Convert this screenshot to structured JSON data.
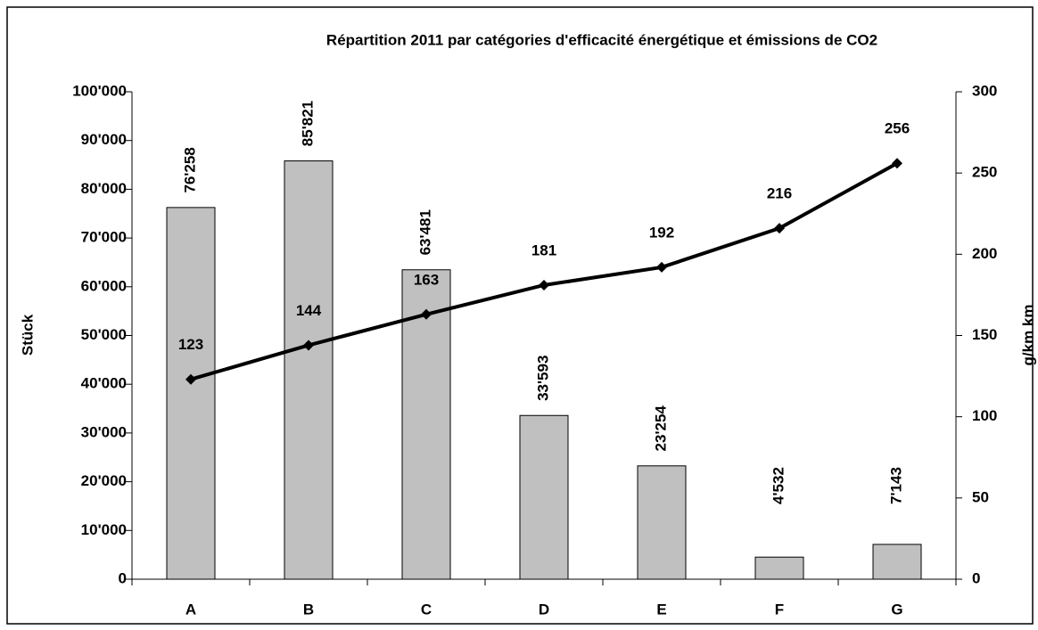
{
  "chart_data": {
    "type": "bar_line",
    "title": "Répartition 2011 par catégories d'efficacité énergétique et émissions de CO2",
    "ylabel": "Stück",
    "y2label": "g/km km",
    "categories": [
      "A",
      "B",
      "C",
      "D",
      "E",
      "F",
      "G"
    ],
    "series": [
      {
        "type": "bar",
        "color": "#c0c0c0",
        "values": [
          76258,
          85821,
          63481,
          33593,
          23254,
          4532,
          7143
        ],
        "value_labels": [
          "76'258",
          "85'821",
          "63'481",
          "33'593",
          "23'254",
          "4'532",
          "7'143"
        ]
      },
      {
        "type": "line",
        "axis": "y2",
        "color": "#000000",
        "values": [
          123,
          144,
          163,
          181,
          192,
          216,
          256
        ]
      }
    ],
    "ylim": [
      0,
      100000
    ],
    "yticks": [
      0,
      {
        "value": 10000,
        "label": "10'000"
      },
      {
        "value": 20000,
        "label": "20'000"
      },
      {
        "value": 30000,
        "label": "30'000"
      },
      {
        "value": 40000,
        "label": "40'000"
      },
      {
        "value": 50000,
        "label": "50'000"
      },
      {
        "value": 60000,
        "label": "60'000"
      },
      {
        "value": 70000,
        "label": "70'000"
      },
      {
        "value": 80000,
        "label": "80'000"
      },
      {
        "value": 90000,
        "label": "90'000"
      },
      {
        "value": 100000,
        "label": "100'000"
      }
    ],
    "y2lim": [
      0,
      300
    ],
    "y2ticks": [
      0,
      50,
      100,
      150,
      200,
      250,
      300
    ]
  }
}
